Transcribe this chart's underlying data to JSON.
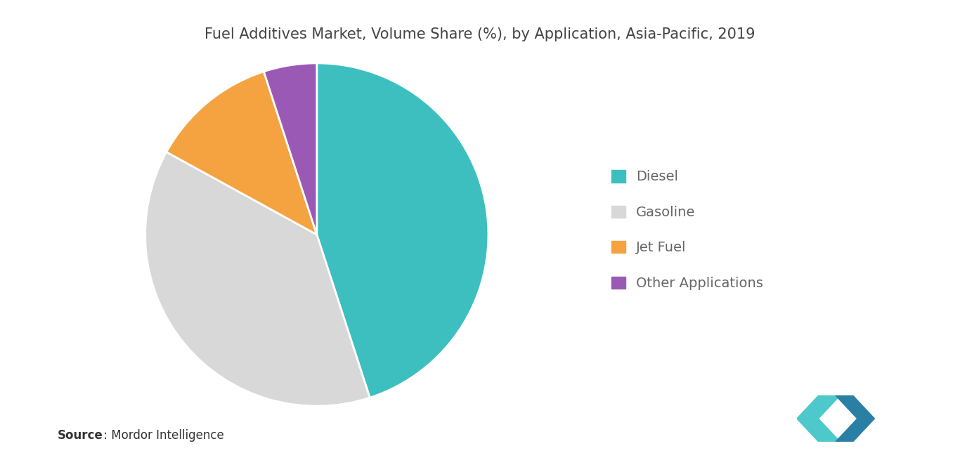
{
  "title": "Fuel Additives Market, Volume Share (%), by Application, Asia-Pacific, 2019",
  "labels": [
    "Diesel",
    "Gasoline",
    "Jet Fuel",
    "Other Applications"
  ],
  "values": [
    45,
    38,
    12,
    5
  ],
  "colors": [
    "#3dbfc0",
    "#d8d8d8",
    "#f5a340",
    "#9b59b6"
  ],
  "legend_labels": [
    "Diesel",
    "Gasoline",
    "Jet Fuel",
    "Other Applications"
  ],
  "source_bold": "Source",
  "source_rest": " : Mordor Intelligence",
  "background_color": "#ffffff",
  "title_fontsize": 15,
  "legend_fontsize": 14,
  "source_fontsize": 12,
  "startangle": 90,
  "logo_colors": {
    "teal_light": "#4dc8cb",
    "teal_dark": "#2a7fa5",
    "navy": "#1a3a5c"
  }
}
